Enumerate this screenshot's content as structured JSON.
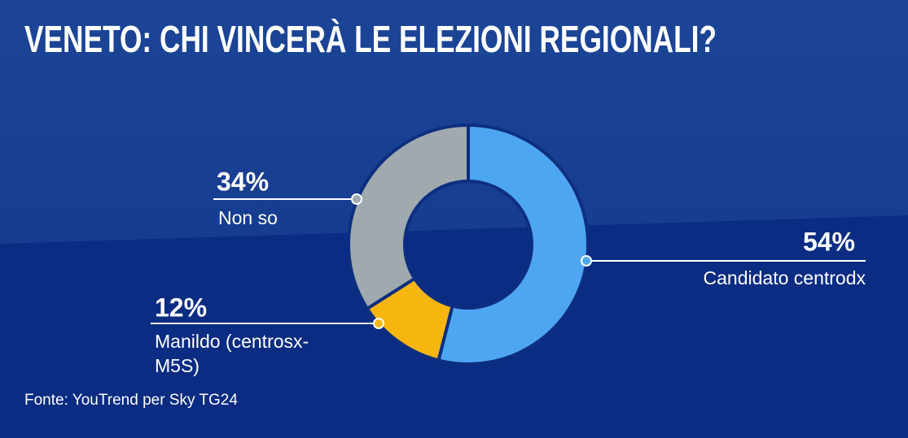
{
  "chart_data": {
    "type": "donut",
    "title": "VENETO: CHI VINCERÀ LE ELEZIONI REGIONALI?",
    "categories": [
      "Candidato centrodx",
      "Manildo (centrosx-M5S)",
      "Non so"
    ],
    "values": [
      54,
      12,
      34
    ],
    "value_labels": [
      "54%",
      "12%",
      "34%"
    ],
    "colors": [
      "#4ea6f2",
      "#f7b60f",
      "#9fa9ae"
    ],
    "source": "Fonte: YouTrend per Sky TG24"
  }
}
